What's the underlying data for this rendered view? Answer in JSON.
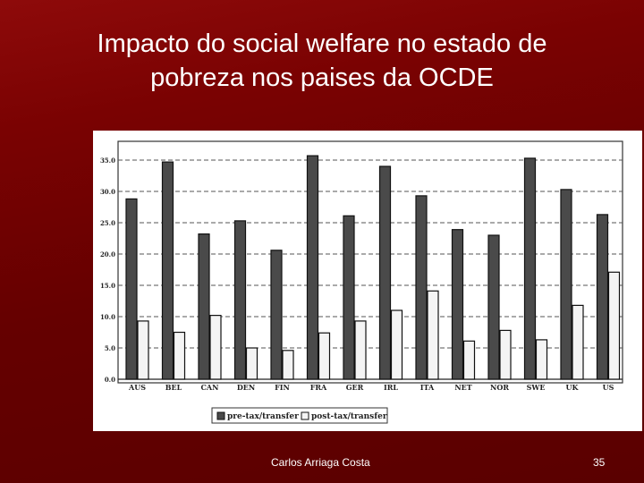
{
  "slide": {
    "title_line1": "Impacto do social welfare no estado de",
    "title_line2": "pobreza nos paises da OCDE",
    "author": "Carlos Arriaga Costa",
    "page_number": "35"
  },
  "colors": {
    "background": "#6e0000",
    "pre_bar": "#4a4a4a",
    "post_bar": "#f4f4f4"
  },
  "chart_data": {
    "type": "bar",
    "categories": [
      "AUS",
      "BEL",
      "CAN",
      "DEN",
      "FIN",
      "FRA",
      "GER",
      "IRL",
      "ITA",
      "NET",
      "NOR",
      "SWE",
      "UK",
      "US"
    ],
    "series": [
      {
        "name": "pre-tax/transfer",
        "values": [
          28.8,
          34.7,
          23.2,
          25.3,
          20.6,
          35.7,
          26.1,
          34.0,
          29.3,
          23.9,
          23.0,
          35.3,
          30.3,
          26.3
        ]
      },
      {
        "name": "post-tax/transfer",
        "values": [
          9.3,
          7.5,
          10.2,
          5.0,
          4.6,
          7.4,
          9.3,
          11.0,
          14.1,
          6.1,
          7.8,
          6.3,
          11.8,
          17.1
        ]
      }
    ],
    "yticks": [
      "0.0",
      "5.0",
      "10.0",
      "15.0",
      "20.0",
      "25.0",
      "30.0",
      "35.0"
    ],
    "ylim": [
      0,
      35
    ],
    "grid": true,
    "legend_position": "bottom-center",
    "title": "",
    "xlabel": "",
    "ylabel": ""
  }
}
